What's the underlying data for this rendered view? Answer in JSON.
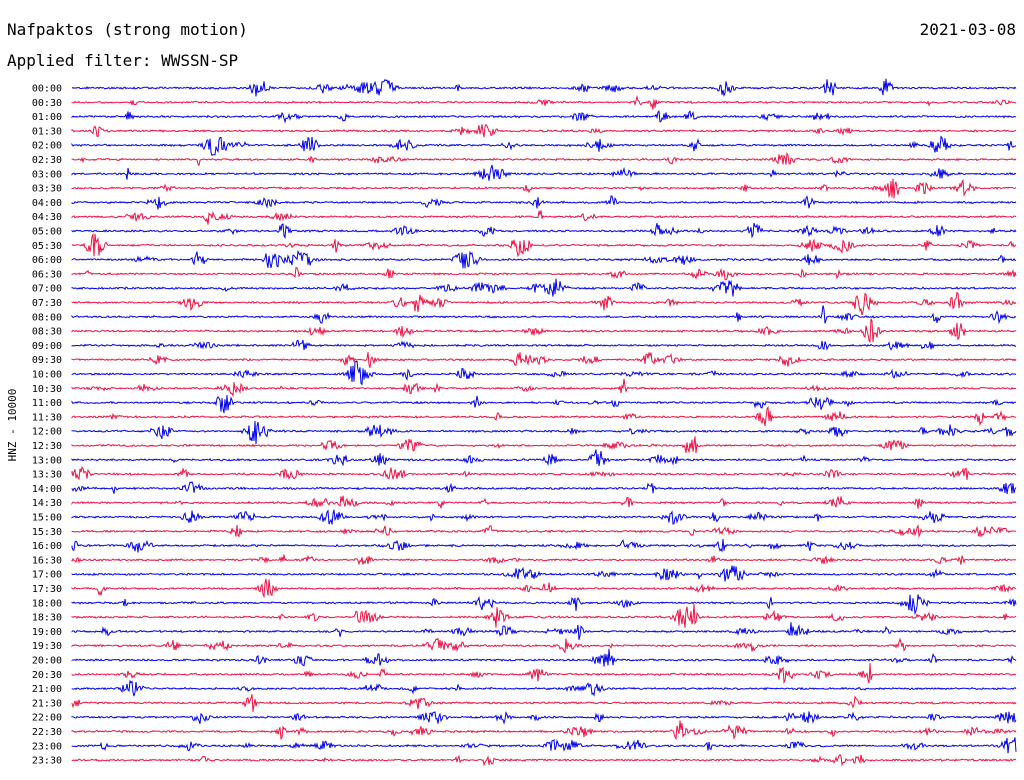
{
  "header": {
    "station_title": "Nafpaktos (strong motion)",
    "date": "2021-03-08",
    "filter_text": "Applied filter: WWSSN-SP"
  },
  "colors": {
    "trace_even": "#0000ee",
    "trace_odd": "#ee1144",
    "text": "#000000",
    "background": "#ffffff"
  },
  "chart_data": {
    "type": "line",
    "title": "Nafpaktos (strong motion)",
    "ylabel": "HNZ - 10000",
    "grid": false,
    "legend": "none",
    "rows": [
      "00:00",
      "00:30",
      "01:00",
      "01:30",
      "02:00",
      "02:30",
      "03:00",
      "03:30",
      "04:00",
      "04:30",
      "05:00",
      "05:30",
      "06:00",
      "06:30",
      "07:00",
      "07:30",
      "08:00",
      "08:30",
      "09:00",
      "09:30",
      "10:00",
      "10:30",
      "11:00",
      "11:30",
      "12:00",
      "12:30",
      "13:00",
      "13:30",
      "14:00",
      "14:30",
      "15:00",
      "15:30",
      "16:00",
      "16:30",
      "17:00",
      "17:30",
      "18:00",
      "18:30",
      "19:00",
      "19:30",
      "20:00",
      "20:30",
      "21:00",
      "21:30",
      "22:00",
      "22:30",
      "23:00",
      "23:30"
    ],
    "trace_color_cycle": [
      "#0000ee",
      "#ee1144"
    ]
  }
}
